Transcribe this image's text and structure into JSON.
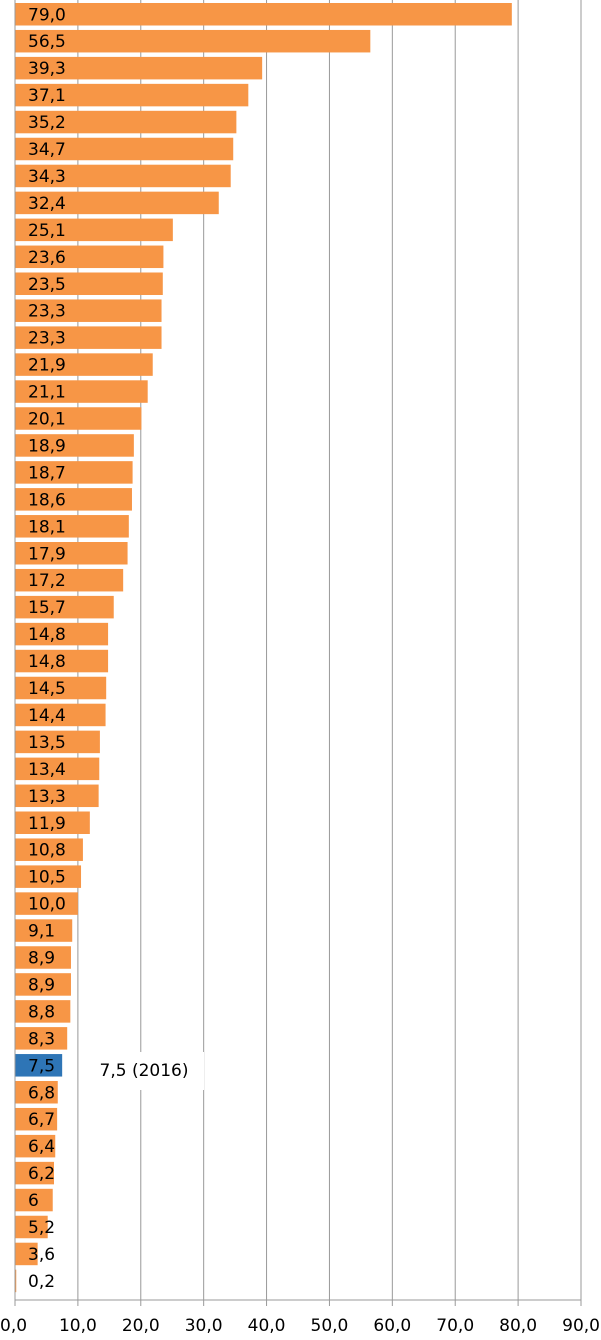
{
  "chart_data": {
    "type": "bar",
    "orientation": "horizontal",
    "values": [
      79.0,
      56.5,
      39.3,
      37.1,
      35.2,
      34.7,
      34.3,
      32.4,
      25.1,
      23.6,
      23.5,
      23.3,
      23.3,
      21.9,
      21.1,
      20.1,
      18.9,
      18.7,
      18.6,
      18.1,
      17.9,
      17.2,
      15.7,
      14.8,
      14.8,
      14.5,
      14.4,
      13.5,
      13.4,
      13.3,
      11.9,
      10.8,
      10.5,
      10.0,
      9.1,
      8.9,
      8.9,
      8.8,
      8.3,
      7.5,
      6.8,
      6.7,
      6.4,
      6.2,
      6,
      5.2,
      3.6,
      0.2
    ],
    "labels": [
      "79,0",
      "56,5",
      "39,3",
      "37,1",
      "35,2",
      "34,7",
      "34,3",
      "32,4",
      "25,1",
      "23,6",
      "23,5",
      "23,3",
      "23,3",
      "21,9",
      "21,1",
      "20,1",
      "18,9",
      "18,7",
      "18,6",
      "18,1",
      "17,9",
      "17,2",
      "15,7",
      "14,8",
      "14,8",
      "14,5",
      "14,4",
      "13,5",
      "13,4",
      "13,3",
      "11,9",
      "10,8",
      "10,5",
      "10,0",
      "9,1",
      "8,9",
      "8,9",
      "8,8",
      "8,3",
      "7,5",
      "6,8",
      "6,7",
      "6,4",
      "6,2",
      "6",
      "5,2",
      "3,6",
      "0,2"
    ],
    "highlight_index": 39,
    "annotation": "7,5 (2016)",
    "xlim": [
      0,
      90
    ],
    "x_ticks": [
      "0,0",
      "10,0",
      "20,0",
      "30,0",
      "40,0",
      "50,0",
      "60,0",
      "70,0",
      "80,0",
      "90,0"
    ],
    "grid": true,
    "colors": {
      "bar": "#f79646",
      "highlight": "#2e75b6",
      "grid": "#999999",
      "text": "#000000"
    }
  }
}
